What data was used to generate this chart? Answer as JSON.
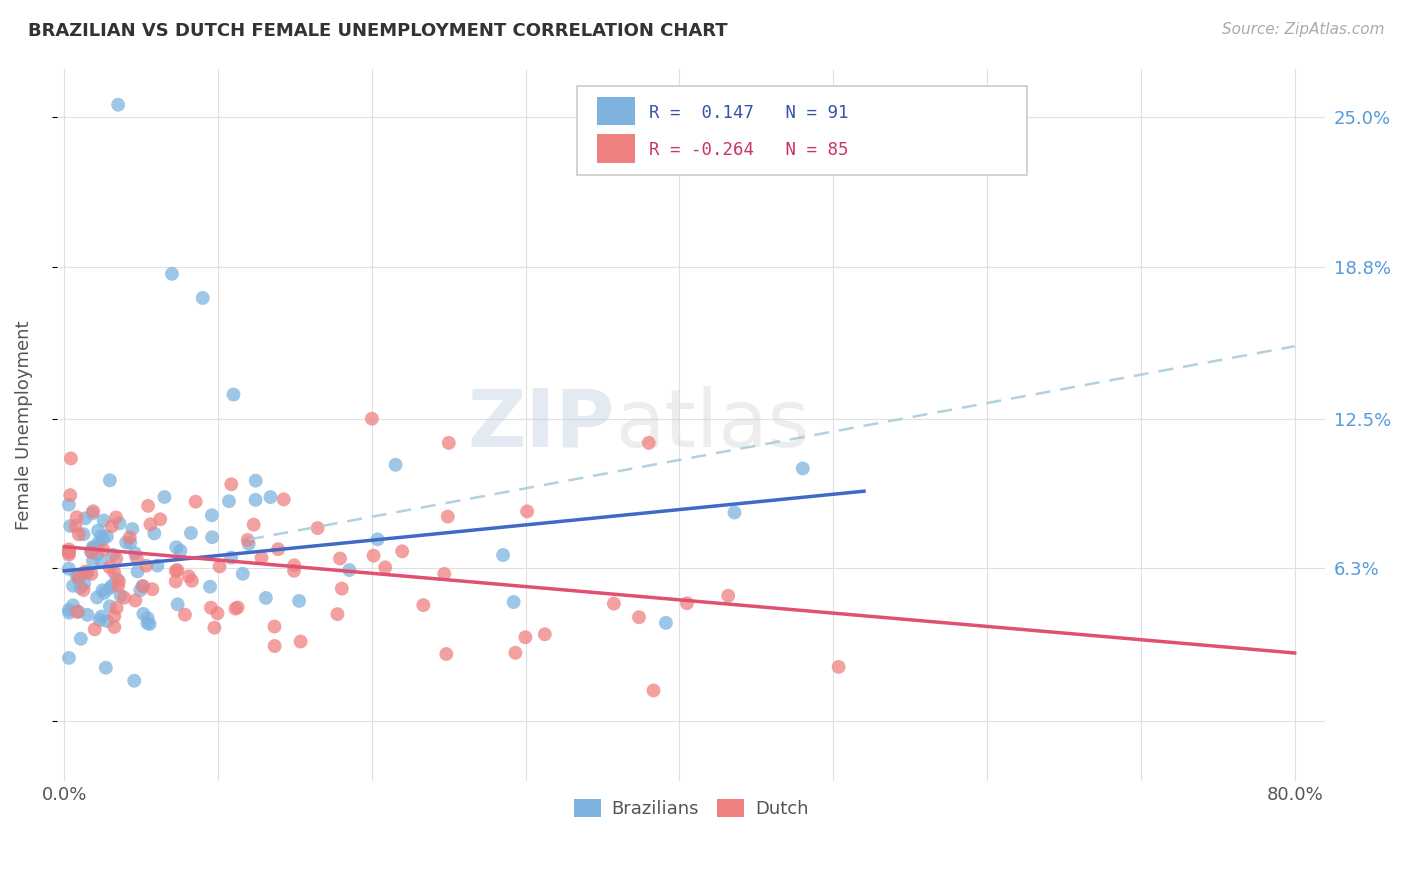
{
  "title": "BRAZILIAN VS DUTCH FEMALE UNEMPLOYMENT CORRELATION CHART",
  "source": "Source: ZipAtlas.com",
  "ylabel": "Female Unemployment",
  "color_brazilian": "#7EB3E0",
  "color_dutch": "#F08080",
  "color_trend_brazilian": "#4169C8",
  "color_trend_dutch": "#E05070",
  "color_trend_dashed": "#AACCDD",
  "y_tick_vals": [
    0.0,
    0.063,
    0.125,
    0.188,
    0.25
  ],
  "y_tick_labels": [
    "",
    "6.3%",
    "12.5%",
    "18.8%",
    "25.0%"
  ],
  "x_tick_vals": [
    0.0,
    0.1,
    0.2,
    0.3,
    0.4,
    0.5,
    0.6,
    0.7,
    0.8
  ],
  "x_tick_labels": [
    "0.0%",
    "",
    "",
    "",
    "",
    "",
    "",
    "",
    "80.0%"
  ],
  "xlim": [
    -0.005,
    0.82
  ],
  "ylim": [
    -0.025,
    0.27
  ],
  "watermark": "ZIPatlas",
  "legend_brazilian_r": "R =  0.147",
  "legend_brazilian_n": "N = 91",
  "legend_dutch_r": "R = -0.264",
  "legend_dutch_n": "N = 85",
  "trend_braz_x0": 0.0,
  "trend_braz_x1": 0.52,
  "trend_braz_y0": 0.062,
  "trend_braz_y1": 0.095,
  "trend_dutch_x0": 0.0,
  "trend_dutch_x1": 0.8,
  "trend_dutch_y0": 0.072,
  "trend_dutch_y1": 0.028,
  "trend_dash_x0": 0.12,
  "trend_dash_x1": 0.8,
  "trend_dash_y0": 0.075,
  "trend_dash_y1": 0.155
}
